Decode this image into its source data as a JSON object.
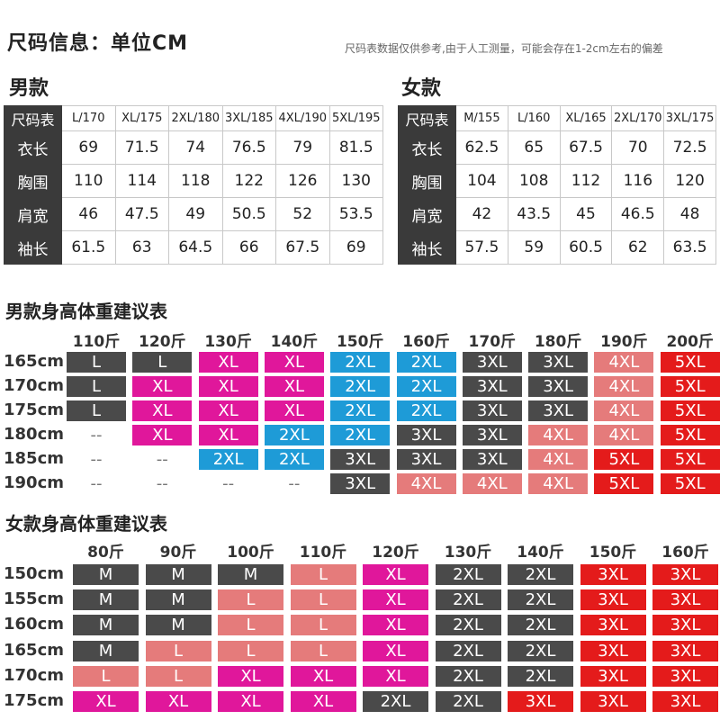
{
  "title": "尺码信息：单位CM",
  "note": "尺码表数据仅供参考,由于人工测量，可能会存在1-2cm左右的偏差",
  "colors": {
    "dark": "#4a4a4a",
    "magenta": "#e0179b",
    "blue": "#1e9bd7",
    "pink": "#e57b7b",
    "red": "#e41b1b",
    "header_dark": "#3a3a3a"
  },
  "men_table": {
    "title": "男款",
    "header_label": "尺码表",
    "sizes": [
      "L/170",
      "XL/175",
      "2XL/180",
      "3XL/185",
      "4XL/190",
      "5XL/195"
    ],
    "rows": [
      {
        "label": "衣长",
        "values": [
          "69",
          "71.5",
          "74",
          "76.5",
          "79",
          "81.5"
        ]
      },
      {
        "label": "胸围",
        "values": [
          "110",
          "114",
          "118",
          "122",
          "126",
          "130"
        ]
      },
      {
        "label": "肩宽",
        "values": [
          "46",
          "47.5",
          "49",
          "50.5",
          "52",
          "53.5"
        ]
      },
      {
        "label": "袖长",
        "values": [
          "61.5",
          "63",
          "64.5",
          "66",
          "67.5",
          "69"
        ]
      }
    ]
  },
  "women_table": {
    "title": "女款",
    "header_label": "尺码表",
    "sizes": [
      "M/155",
      "L/160",
      "XL/165",
      "2XL/170",
      "3XL/175"
    ],
    "rows": [
      {
        "label": "衣长",
        "values": [
          "62.5",
          "65",
          "67.5",
          "70",
          "72.5"
        ]
      },
      {
        "label": "胸围",
        "values": [
          "104",
          "108",
          "112",
          "116",
          "120"
        ]
      },
      {
        "label": "肩宽",
        "values": [
          "42",
          "43.5",
          "45",
          "46.5",
          "48"
        ]
      },
      {
        "label": "袖长",
        "values": [
          "57.5",
          "59",
          "60.5",
          "62",
          "63.5"
        ]
      }
    ]
  },
  "men_rec": {
    "title": "男款身高体重建议表",
    "weights": [
      "110斤",
      "120斤",
      "130斤",
      "140斤",
      "150斤",
      "160斤",
      "170斤",
      "180斤",
      "190斤",
      "200斤"
    ],
    "heights": [
      "165cm",
      "170cm",
      "175cm",
      "180cm",
      "185cm",
      "190cm"
    ],
    "grid": [
      [
        "L",
        "L",
        "XL",
        "XL",
        "2XL",
        "2XL",
        "3XL",
        "3XL",
        "4XL",
        "5XL"
      ],
      [
        "L",
        "XL",
        "XL",
        "XL",
        "2XL",
        "2XL",
        "3XL",
        "3XL",
        "4XL",
        "5XL"
      ],
      [
        "L",
        "XL",
        "XL",
        "XL",
        "2XL",
        "2XL",
        "3XL",
        "3XL",
        "4XL",
        "5XL"
      ],
      [
        "--",
        "XL",
        "XL",
        "2XL",
        "2XL",
        "3XL",
        "3XL",
        "4XL",
        "4XL",
        "5XL"
      ],
      [
        "--",
        "--",
        "2XL",
        "2XL",
        "3XL",
        "3XL",
        "3XL",
        "4XL",
        "5XL",
        "5XL"
      ],
      [
        "--",
        "--",
        "--",
        "--",
        "3XL",
        "4XL",
        "4XL",
        "4XL",
        "5XL",
        "5XL"
      ]
    ],
    "colors": [
      [
        "dark",
        "dark",
        "magenta",
        "magenta",
        "blue",
        "blue",
        "dark",
        "dark",
        "pink",
        "red"
      ],
      [
        "dark",
        "magenta",
        "magenta",
        "magenta",
        "blue",
        "blue",
        "dark",
        "dark",
        "pink",
        "red"
      ],
      [
        "dark",
        "magenta",
        "magenta",
        "magenta",
        "blue",
        "blue",
        "dark",
        "dark",
        "pink",
        "red"
      ],
      [
        "",
        "magenta",
        "magenta",
        "blue",
        "blue",
        "dark",
        "dark",
        "pink",
        "pink",
        "red"
      ],
      [
        "",
        "",
        "blue",
        "blue",
        "dark",
        "dark",
        "dark",
        "pink",
        "red",
        "red"
      ],
      [
        "",
        "",
        "",
        "",
        "dark",
        "pink",
        "pink",
        "pink",
        "red",
        "red"
      ]
    ]
  },
  "women_rec": {
    "title": "女款身高体重建议表",
    "weights": [
      "80斤",
      "90斤",
      "100斤",
      "110斤",
      "120斤",
      "130斤",
      "140斤",
      "150斤",
      "160斤"
    ],
    "heights": [
      "150cm",
      "155cm",
      "160cm",
      "165cm",
      "170cm",
      "175cm"
    ],
    "grid": [
      [
        "M",
        "M",
        "M",
        "L",
        "XL",
        "2XL",
        "2XL",
        "3XL",
        "3XL"
      ],
      [
        "M",
        "M",
        "L",
        "L",
        "XL",
        "2XL",
        "2XL",
        "3XL",
        "3XL"
      ],
      [
        "M",
        "M",
        "L",
        "L",
        "XL",
        "2XL",
        "2XL",
        "3XL",
        "3XL"
      ],
      [
        "M",
        "L",
        "L",
        "L",
        "XL",
        "2XL",
        "2XL",
        "3XL",
        "3XL"
      ],
      [
        "L",
        "L",
        "XL",
        "XL",
        "XL",
        "2XL",
        "2XL",
        "3XL",
        "3XL"
      ],
      [
        "XL",
        "XL",
        "XL",
        "XL",
        "2XL",
        "2XL",
        "3XL",
        "3XL",
        "3XL"
      ]
    ],
    "colors": [
      [
        "dark",
        "dark",
        "dark",
        "pink",
        "magenta",
        "dark",
        "dark",
        "red",
        "red"
      ],
      [
        "dark",
        "dark",
        "pink",
        "pink",
        "magenta",
        "dark",
        "dark",
        "red",
        "red"
      ],
      [
        "dark",
        "dark",
        "pink",
        "pink",
        "magenta",
        "dark",
        "dark",
        "red",
        "red"
      ],
      [
        "dark",
        "pink",
        "pink",
        "pink",
        "magenta",
        "dark",
        "dark",
        "red",
        "red"
      ],
      [
        "pink",
        "pink",
        "magenta",
        "magenta",
        "magenta",
        "dark",
        "dark",
        "red",
        "red"
      ],
      [
        "magenta",
        "magenta",
        "magenta",
        "magenta",
        "dark",
        "dark",
        "red",
        "red",
        "red"
      ]
    ]
  }
}
